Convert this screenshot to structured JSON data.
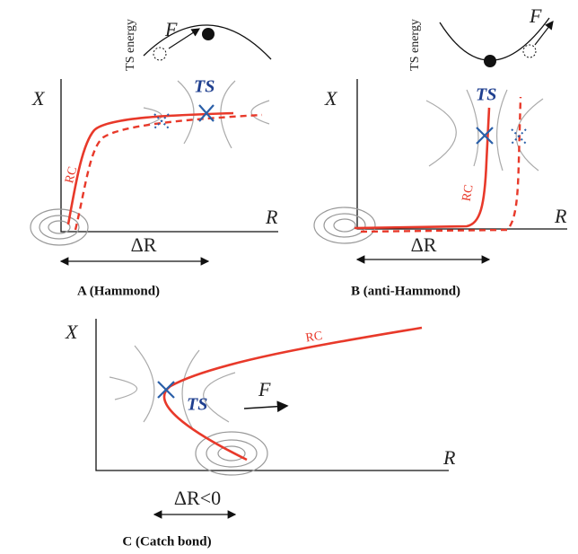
{
  "panels": [
    {
      "label": "A (Hammond)",
      "energy_axis": "TS energy",
      "force": "F",
      "y_axis": "X",
      "x_axis": "R",
      "curve": "RC",
      "transition_state": "TS",
      "displacement": "ΔR"
    },
    {
      "label": "B (anti-Hammond)",
      "energy_axis": "TS energy",
      "force": "F",
      "y_axis": "X",
      "x_axis": "R",
      "curve": "RC",
      "transition_state": "TS",
      "displacement": "ΔR"
    },
    {
      "label": "C (Catch bond)",
      "force": "F",
      "y_axis": "X",
      "x_axis": "R",
      "curve": "RC",
      "transition_state": "TS",
      "displacement": "ΔR<0"
    }
  ]
}
